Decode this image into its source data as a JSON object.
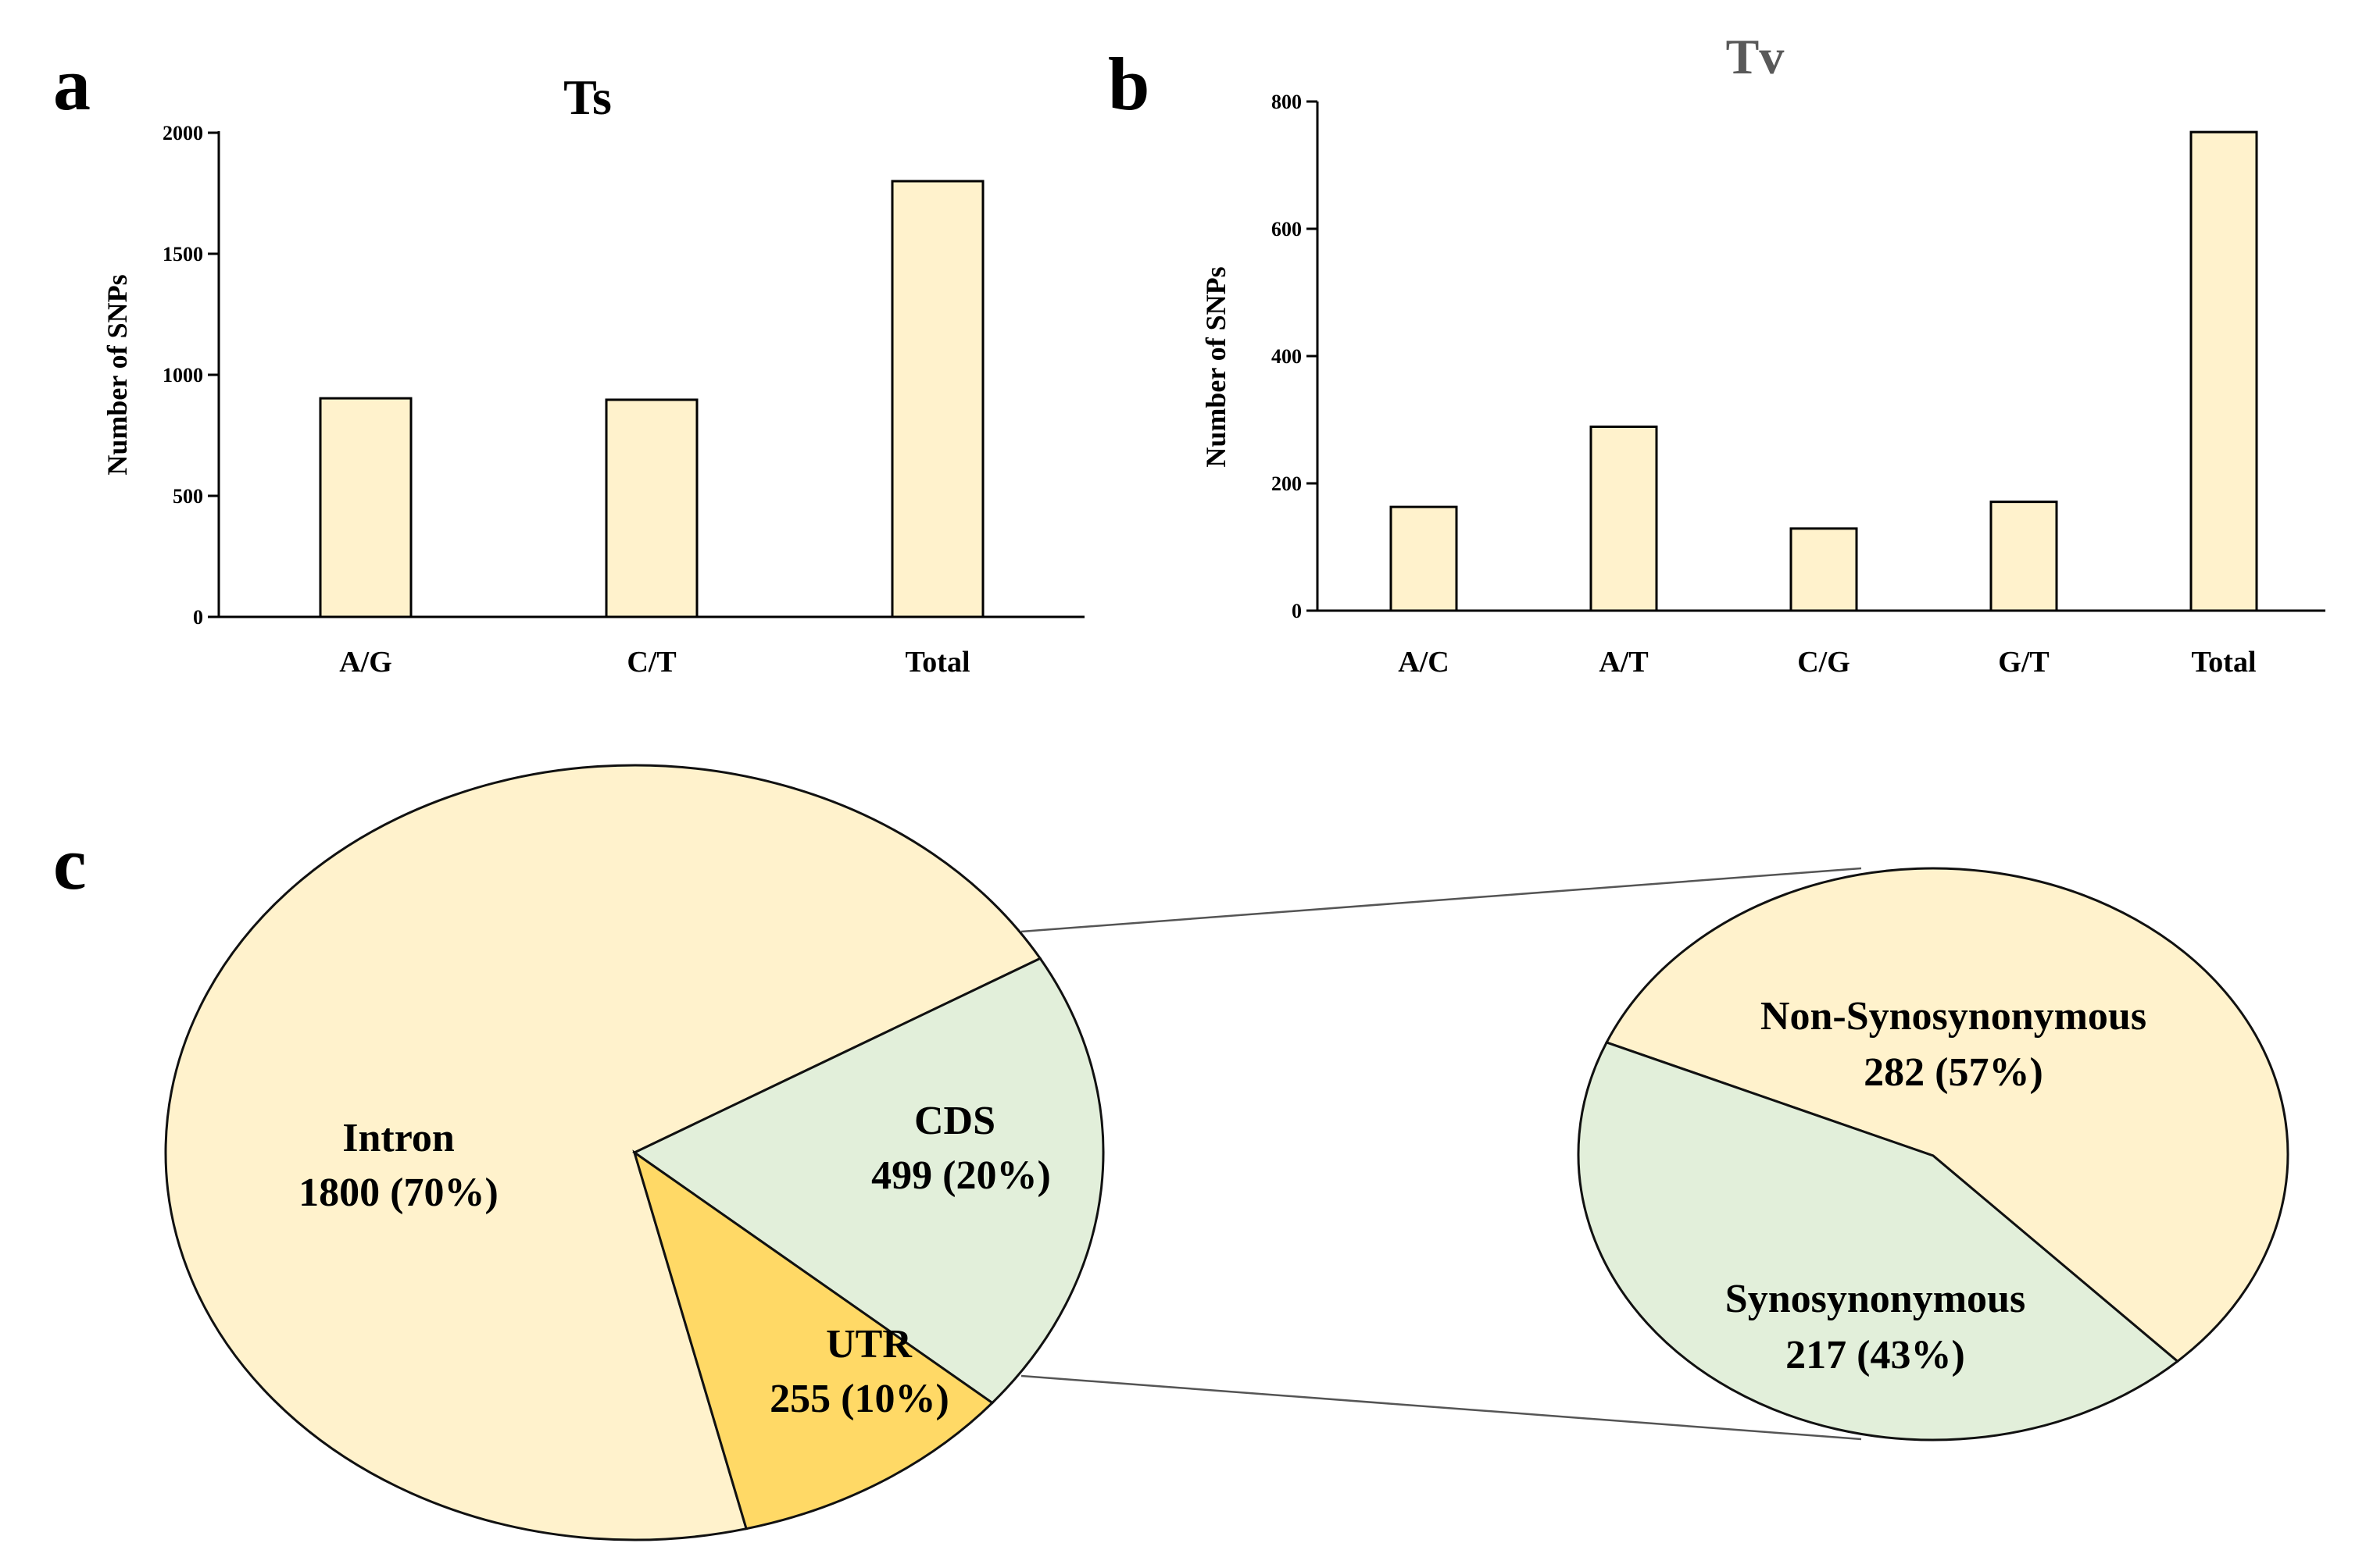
{
  "panels": {
    "a": "a",
    "b": "b",
    "c": "c"
  },
  "colors": {
    "bar": "#fff2cc",
    "intron": "#fff2cc",
    "cds": "#e2efda",
    "utr": "#ffd966",
    "non_syn": "#fff2cc",
    "syn": "#e2efda",
    "stroke": "#000000",
    "title_b": "#595959"
  },
  "chart_data": [
    {
      "type": "bar",
      "title": "Ts",
      "xlabel": "",
      "ylabel": "Number of SNPs",
      "categories": [
        "A/G",
        "C/T",
        "Total"
      ],
      "values": [
        903,
        897,
        1800
      ],
      "ylim": [
        0,
        2000
      ],
      "yticks": [
        0,
        500,
        1000,
        1500,
        2000
      ]
    },
    {
      "type": "bar",
      "title": "Tv",
      "xlabel": "",
      "ylabel": "Number of SNPs",
      "categories": [
        "A/C",
        "A/T",
        "C/G",
        "G/T",
        "Total"
      ],
      "values": [
        163,
        289,
        129,
        171,
        752
      ],
      "ylim": [
        0,
        800
      ],
      "yticks": [
        0,
        200,
        400,
        600,
        800
      ]
    },
    {
      "type": "pie",
      "title": "",
      "slices": [
        {
          "name": "Intron",
          "value": 1800,
          "label": "1800 (70%)"
        },
        {
          "name": "CDS",
          "value": 499,
          "label": "499 (20%)"
        },
        {
          "name": "UTR",
          "value": 255,
          "label": "255 (10%)"
        }
      ]
    },
    {
      "type": "pie",
      "title": "",
      "slices": [
        {
          "name": "Non-Synosynonymous",
          "value": 282,
          "label": "282 (57%)"
        },
        {
          "name": "Synosynonymous",
          "value": 217,
          "label": "217 (43%)"
        }
      ]
    }
  ]
}
